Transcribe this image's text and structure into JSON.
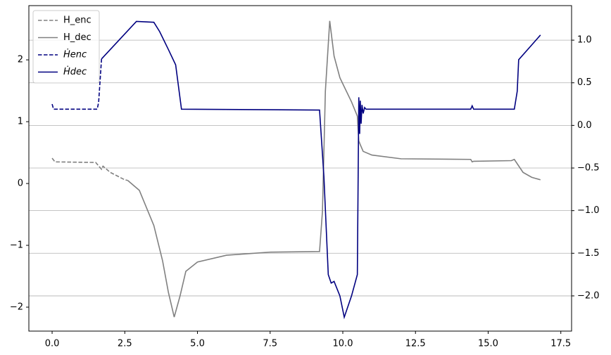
{
  "chart_data": {
    "type": "line",
    "legend": "upper left",
    "grid": "y2",
    "xlim": [
      -0.8,
      17.87
    ],
    "ylim": [
      -2.387,
      2.877
    ],
    "y2lim": [
      -2.413,
      1.405
    ],
    "xticks": [
      {
        "value": 0,
        "label": "0.0"
      },
      2.5,
      {
        "value": 5,
        "label": "5.0"
      },
      7.5,
      {
        "value": 10,
        "label": "10.0"
      },
      12.5,
      {
        "value": 15,
        "label": "15.0"
      },
      17.5
    ],
    "yticks": [
      {
        "value": -2,
        "label": "−2"
      },
      {
        "value": -1,
        "label": "−1"
      },
      0,
      1,
      2
    ],
    "y2ticks": [
      {
        "value": -2,
        "label": "−2.0"
      },
      {
        "value": -1.5,
        "label": "−1.5"
      },
      {
        "value": -1,
        "label": "−1.0"
      },
      {
        "value": -0.5,
        "label": "−0.5"
      },
      {
        "value": 0,
        "label": "0.0"
      },
      0.5,
      {
        "value": 1,
        "label": "1.0"
      }
    ],
    "series": [
      {
        "name": "H_enc",
        "color": "#808080",
        "dash": true,
        "axis": "y",
        "x": [
          0,
          0.1,
          1.5,
          1.7,
          1.75,
          2.0,
          2.5,
          2.6
        ],
        "values": [
          0.41,
          0.35,
          0.34,
          0.23,
          0.28,
          0.18,
          0.06,
          0.05
        ]
      },
      {
        "name": "H_dec",
        "color": "#808080",
        "dash": false,
        "axis": "y",
        "x": [
          2.6,
          3.0,
          3.5,
          3.8,
          4.0,
          4.2,
          4.4,
          4.6,
          5.0,
          6.0,
          7.5,
          9.2,
          9.3,
          9.4,
          9.55,
          9.7,
          9.9,
          10.3,
          10.5,
          10.55,
          10.6,
          10.7,
          11.0,
          12.0,
          14.4,
          14.45,
          14.5,
          15.8,
          15.9,
          16.2,
          16.5,
          16.8
        ],
        "values": [
          0.05,
          -0.11,
          -0.68,
          -1.25,
          -1.76,
          -2.16,
          -1.82,
          -1.42,
          -1.27,
          -1.16,
          -1.11,
          -1.1,
          -0.45,
          1.49,
          2.63,
          2.06,
          1.71,
          1.32,
          1.09,
          0.69,
          0.63,
          0.52,
          0.46,
          0.4,
          0.39,
          0.35,
          0.36,
          0.37,
          0.39,
          0.18,
          0.1,
          0.06
        ]
      },
      {
        "name": "Ḣenc",
        "color": "#000080",
        "dash": true,
        "axis": "y2",
        "x": [
          0,
          0.05,
          1.55,
          1.6,
          1.7
        ],
        "values": [
          0.25,
          0.19,
          0.19,
          0.27,
          0.78
        ]
      },
      {
        "name": "Ḣdec",
        "color": "#000080",
        "dash": false,
        "axis": "y2",
        "x": [
          1.7,
          2.9,
          3.5,
          3.7,
          4.0,
          4.25,
          4.45,
          9.2,
          9.35,
          9.5,
          9.6,
          9.7,
          9.9,
          10.05,
          10.3,
          10.5,
          10.55,
          10.58,
          10.6,
          10.63,
          10.66,
          10.7,
          10.75,
          10.8,
          14.4,
          14.45,
          14.5,
          15.9,
          16.0,
          16.05,
          16.8
        ],
        "values": [
          0.78,
          1.22,
          1.21,
          1.1,
          0.89,
          0.71,
          0.19,
          0.18,
          -0.6,
          -1.75,
          -1.85,
          -1.83,
          -2.0,
          -2.25,
          -2.0,
          -1.75,
          0.33,
          -0.1,
          0.29,
          0.02,
          0.24,
          0.14,
          0.21,
          0.19,
          0.19,
          0.23,
          0.19,
          0.19,
          0.4,
          0.77,
          1.06
        ]
      }
    ]
  }
}
